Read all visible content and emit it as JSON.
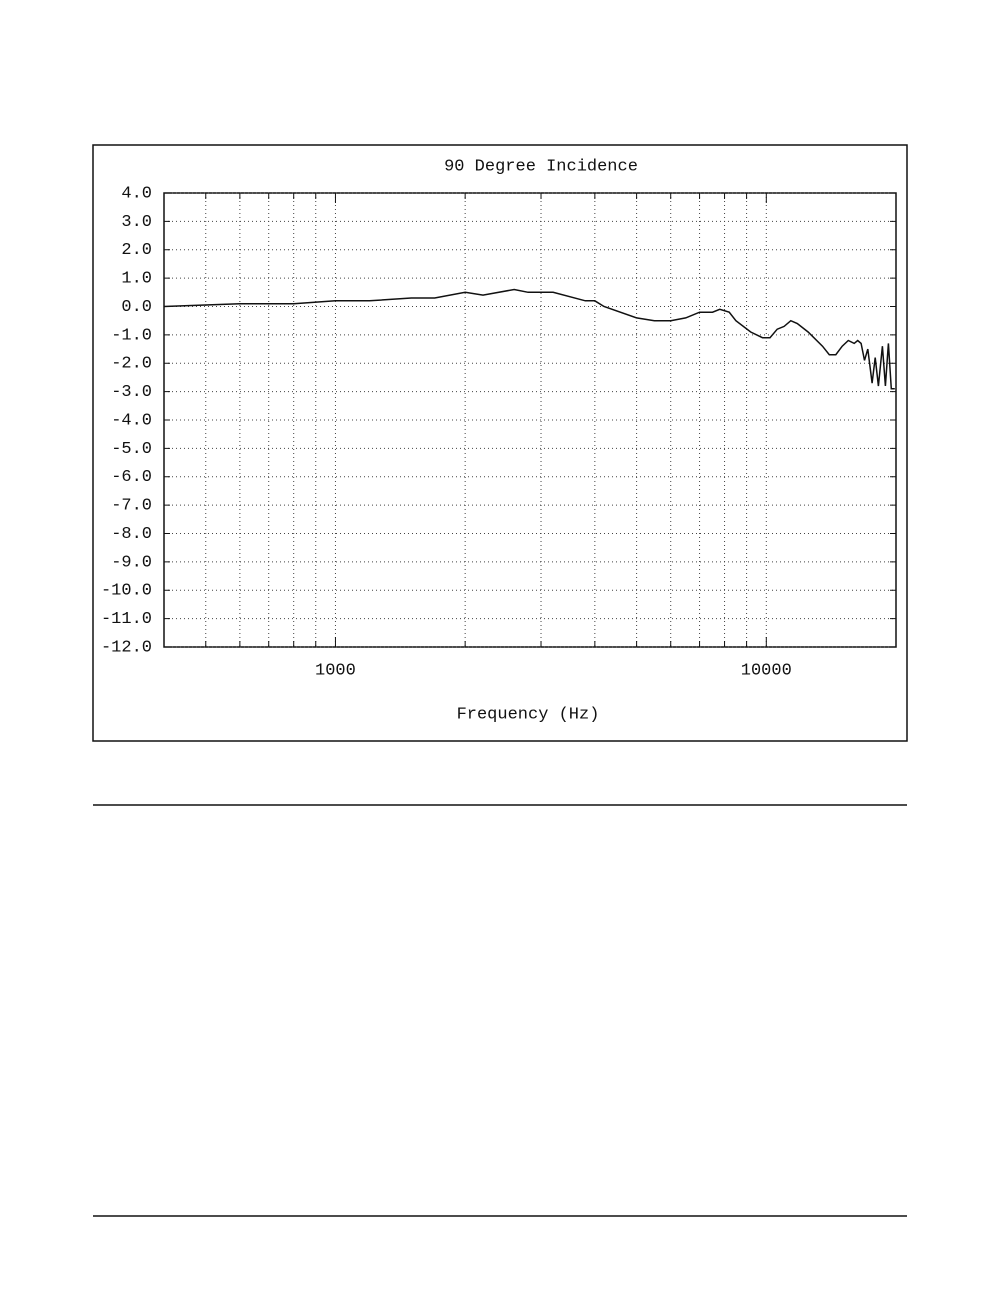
{
  "chart_data": {
    "type": "line",
    "title": "90 Degree Incidence",
    "x_label": "Frequency (Hz)",
    "x_scale": "log",
    "xlim": [
      400,
      20000
    ],
    "xticks": [
      1000,
      10000
    ],
    "minor_xticks": [
      500,
      600,
      700,
      800,
      900,
      2000,
      3000,
      4000,
      5000,
      6000,
      7000,
      8000,
      9000
    ],
    "ylim": [
      -12,
      4
    ],
    "yticks": [
      {
        "value": 4,
        "label": "4.0"
      },
      {
        "value": 3,
        "label": "3.0"
      },
      {
        "value": 2,
        "label": "2.0"
      },
      {
        "value": 1,
        "label": "1.0"
      },
      {
        "value": 0,
        "label": "0.0"
      },
      {
        "value": -1,
        "label": "-1.0"
      },
      {
        "value": -2,
        "label": "-2.0"
      },
      {
        "value": -3,
        "label": "-3.0"
      },
      {
        "value": -4,
        "label": "-4.0"
      },
      {
        "value": -5,
        "label": "-5.0"
      },
      {
        "value": -6,
        "label": "-6.0"
      },
      {
        "value": -7,
        "label": "-7.0"
      },
      {
        "value": -8,
        "label": "-8.0"
      },
      {
        "value": -9,
        "label": "-9.0"
      },
      {
        "value": -10,
        "label": "-10.0"
      },
      {
        "value": -11,
        "label": "-11.0"
      },
      {
        "value": -12,
        "label": "-12.0"
      }
    ],
    "grid": true,
    "color": "#111",
    "x": [
      400,
      600,
      800,
      1000,
      1200,
      1500,
      1700,
      2000,
      2200,
      2600,
      2800,
      3200,
      3800,
      4000,
      4200,
      5000,
      5500,
      6000,
      6500,
      7000,
      7500,
      7800,
      8200,
      8500,
      9200,
      9800,
      10200,
      10600,
      11000,
      11400,
      11800,
      12500,
      13500,
      14000,
      14500,
      15000,
      15500,
      16000,
      16300,
      16600,
      16900,
      17200,
      17600,
      17900,
      18200,
      18600,
      18900,
      19200,
      19500,
      19870
    ],
    "values": [
      0.0,
      0.1,
      0.1,
      0.2,
      0.2,
      0.3,
      0.3,
      0.5,
      0.4,
      0.6,
      0.5,
      0.5,
      0.2,
      0.2,
      0.0,
      -0.4,
      -0.5,
      -0.5,
      -0.4,
      -0.2,
      -0.2,
      -0.1,
      -0.2,
      -0.5,
      -0.9,
      -1.1,
      -1.1,
      -0.8,
      -0.7,
      -0.5,
      -0.6,
      -0.9,
      -1.4,
      -1.7,
      -1.7,
      -1.4,
      -1.2,
      -1.3,
      -1.2,
      -1.3,
      -1.9,
      -1.5,
      -2.7,
      -1.8,
      -2.8,
      -1.4,
      -2.8,
      -1.3,
      -2.9,
      -2.9
    ]
  }
}
